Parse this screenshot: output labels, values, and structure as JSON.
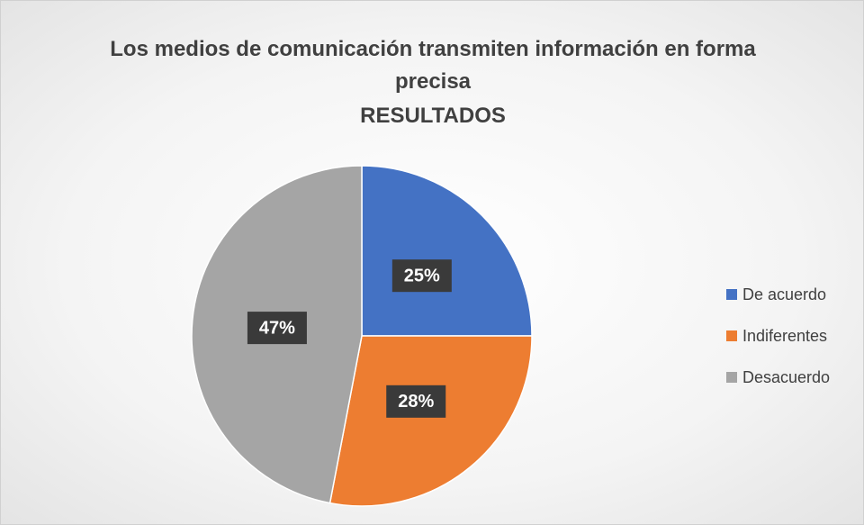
{
  "chart_data": {
    "type": "pie",
    "title": "Los medios de comunicación transmiten información en forma precisa",
    "subtitle": "RESULTADOS",
    "categories": [
      "De acuerdo",
      "Indiferentes",
      "Desacuerdo"
    ],
    "values": [
      25,
      28,
      47
    ],
    "value_labels": [
      "25%",
      "28%",
      "47%"
    ],
    "colors": [
      "#4472c4",
      "#ed7d31",
      "#a5a5a5"
    ],
    "legend": "right"
  }
}
